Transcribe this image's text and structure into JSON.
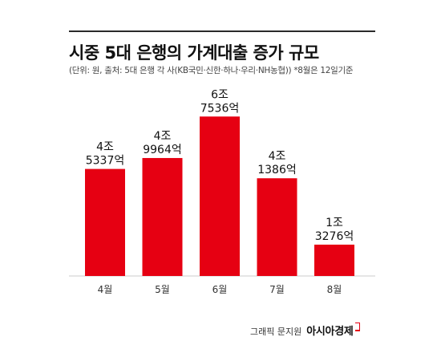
{
  "header": {
    "title": "시중 5대 은행의 가계대출 증가 규모",
    "subtitle": "(단위: 원, 출처: 5대 은행 각 사(KB국민·신한·하나·우리·NH농협)) *8월은 12일기준"
  },
  "chart_data": {
    "type": "bar",
    "title": "시중 5대 은행의 가계대출 증가 규모",
    "categories": [
      "4월",
      "5월",
      "6월",
      "7월",
      "8월"
    ],
    "values": [
      45337,
      49964,
      67536,
      41386,
      13276
    ],
    "unit": "억 원",
    "data_labels": [
      [
        "4조",
        "5337억"
      ],
      [
        "4조",
        "9964억"
      ],
      [
        "6조",
        "7536억"
      ],
      [
        "4조",
        "1386억"
      ],
      [
        "1조",
        "3276억"
      ]
    ],
    "ylim": [
      0,
      70000
    ],
    "bar_color": "#e60012",
    "grid": false,
    "legend": "none"
  },
  "footer": {
    "graphic_credit": "그래픽 문지원",
    "brand": "아시아경제"
  },
  "colors": {
    "accent": "#e60012",
    "rule": "#2a2a2a"
  }
}
